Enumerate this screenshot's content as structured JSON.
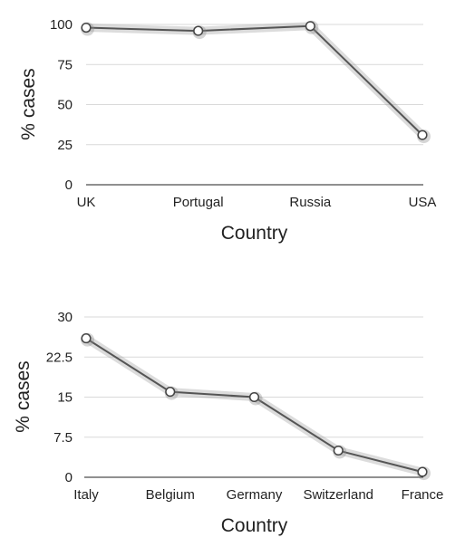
{
  "chart_data": [
    {
      "type": "line",
      "categories": [
        "UK",
        "Portugal",
        "Russia",
        "USA"
      ],
      "series": [
        {
          "values": [
            98,
            96,
            99,
            31
          ]
        }
      ],
      "xlabel": "Country",
      "ylabel": "% cases",
      "ylim": [
        0,
        100
      ],
      "yticks": [
        "0",
        "25",
        "50",
        "75",
        "100"
      ],
      "ytick_values": [
        0,
        25,
        50,
        75,
        100
      ],
      "grid": true
    },
    {
      "type": "line",
      "categories": [
        "Italy",
        "Belgium",
        "Germany",
        "Switzerland",
        "France"
      ],
      "series": [
        {
          "values": [
            26,
            16,
            15,
            5,
            1
          ]
        }
      ],
      "xlabel": "Country",
      "ylabel": "% cases",
      "ylim": [
        0,
        30
      ],
      "yticks": [
        "0",
        "7.5",
        "15",
        "22.5",
        "30"
      ],
      "ytick_values": [
        0,
        7.5,
        15,
        22.5,
        30
      ],
      "grid": true
    }
  ]
}
